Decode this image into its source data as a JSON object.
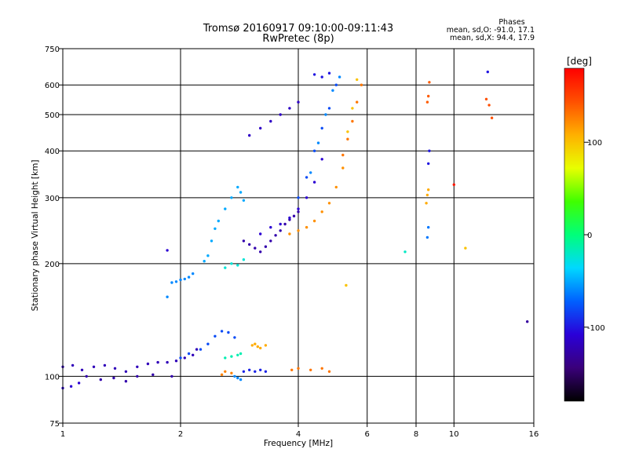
{
  "chart_data": {
    "type": "scatter",
    "title": "Tromsø 20160917 09:10:00-09:11:43",
    "subtitle": "RwPretec (8p)",
    "xlabel": "Frequency [MHz]",
    "ylabel": "Stationary phase Virtual Height [km]",
    "x_scale": "log",
    "y_scale": "log",
    "xlim": [
      1,
      16
    ],
    "ylim": [
      75,
      750
    ],
    "x_ticks": [
      1,
      2,
      4,
      6,
      8,
      10,
      16
    ],
    "y_ticks": [
      75,
      100,
      200,
      300,
      400,
      500,
      600,
      750
    ],
    "grid": true,
    "stats": {
      "heading": "Phases",
      "o_line": "mean, sd,O: -91.0, 17.1",
      "x_line": "mean, sd,X:  94.4, 17.9"
    },
    "colorbar": {
      "label": "[deg]",
      "range": [
        -180,
        180
      ],
      "ticks": [
        100,
        0,
        -100
      ],
      "palette": [
        "#000000",
        "#3a007a",
        "#2a00d8",
        "#0060ff",
        "#00d8ff",
        "#00ff7a",
        "#40ff00",
        "#e8ff00",
        "#ffb000",
        "#ff5000",
        "#ff0000"
      ]
    },
    "series": [
      {
        "x": [
          1.0,
          1.06,
          1.12,
          1.2,
          1.28,
          1.36,
          1.45,
          1.55,
          1.65,
          1.75,
          1.85,
          1.95,
          2.05,
          2.15,
          2.2
        ],
        "y": [
          106,
          107,
          104,
          106,
          107,
          105,
          103,
          106,
          108,
          109,
          109,
          110,
          112,
          114,
          118
        ],
        "phase": -120
      },
      {
        "x": [
          1.0,
          1.05,
          1.1
        ],
        "y": [
          93,
          94,
          96
        ],
        "phase": -110
      },
      {
        "x": [
          1.15,
          1.25,
          1.35,
          1.45,
          1.55,
          1.7,
          1.9
        ],
        "y": [
          100,
          98,
          99,
          97,
          100,
          101,
          100
        ],
        "phase": -125
      },
      {
        "x": [
          2.0,
          2.1,
          2.25,
          2.35,
          2.45,
          2.55,
          2.65,
          2.75
        ],
        "y": [
          112,
          115,
          118,
          122,
          128,
          132,
          131,
          127
        ],
        "phase": -80
      },
      {
        "x": [
          2.6,
          2.7,
          2.8,
          2.85
        ],
        "y": [
          112,
          113,
          114,
          115
        ],
        "phase": -15
      },
      {
        "x": [
          2.75,
          2.8,
          2.85
        ],
        "y": [
          100,
          99,
          98
        ],
        "phase": -60
      },
      {
        "x": [
          3.05,
          3.1,
          3.15,
          3.2,
          3.3
        ],
        "y": [
          121,
          122,
          120,
          119,
          121
        ],
        "phase": 110
      },
      {
        "x": [
          2.55,
          2.6,
          2.7
        ],
        "y": [
          101,
          103,
          102
        ],
        "phase": 125
      },
      {
        "x": [
          2.9,
          3.0,
          3.1,
          3.2,
          3.3
        ],
        "y": [
          103,
          104,
          103,
          104,
          103
        ],
        "phase": -95
      },
      {
        "x": [
          3.85,
          4.0,
          4.3,
          4.6,
          4.8
        ],
        "y": [
          104,
          105,
          104,
          105,
          103
        ],
        "phase": 130
      },
      {
        "x": [
          1.85,
          1.9,
          1.95,
          2.0,
          2.05,
          2.1,
          2.15
        ],
        "y": [
          163,
          178,
          179,
          181,
          182,
          184,
          188
        ],
        "phase": -60
      },
      {
        "x": [
          1.85
        ],
        "y": [
          217
        ],
        "phase": -110
      },
      {
        "x": [
          2.3,
          2.35,
          2.4,
          2.45,
          2.5,
          2.6,
          2.7,
          2.8,
          2.85,
          2.9
        ],
        "y": [
          203,
          210,
          230,
          248,
          260,
          280,
          300,
          320,
          310,
          295
        ],
        "phase": -50
      },
      {
        "x": [
          2.6,
          2.7,
          2.8,
          2.9
        ],
        "y": [
          195,
          200,
          198,
          205
        ],
        "phase": -25
      },
      {
        "x": [
          2.9,
          3.0,
          3.1,
          3.2,
          3.3,
          3.4,
          3.5,
          3.6,
          3.7,
          3.8,
          3.9,
          4.0
        ],
        "y": [
          230,
          225,
          220,
          215,
          222,
          230,
          238,
          245,
          255,
          262,
          268,
          275
        ],
        "phase": -125
      },
      {
        "x": [
          3.2,
          3.4,
          3.6,
          3.8,
          4.0,
          4.2,
          4.4,
          4.6
        ],
        "y": [
          240,
          250,
          255,
          265,
          280,
          300,
          330,
          380
        ],
        "phase": -110
      },
      {
        "x": [
          3.0,
          3.2,
          3.4,
          3.6,
          3.8,
          4.0
        ],
        "y": [
          440,
          460,
          480,
          500,
          520,
          540
        ],
        "phase": -115
      },
      {
        "x": [
          4.0,
          4.2,
          4.4,
          4.6,
          4.8,
          5.0
        ],
        "y": [
          300,
          340,
          400,
          460,
          520,
          600
        ],
        "phase": -80
      },
      {
        "x": [
          4.3,
          4.5,
          4.7,
          4.9,
          5.1
        ],
        "y": [
          350,
          420,
          500,
          580,
          630
        ],
        "phase": -60
      },
      {
        "x": [
          4.4,
          4.6,
          4.8
        ],
        "y": [
          640,
          630,
          645
        ],
        "phase": -100
      },
      {
        "x": [
          3.8,
          4.0,
          4.2,
          4.4,
          4.6,
          4.8,
          5.0,
          5.2
        ],
        "y": [
          240,
          245,
          250,
          260,
          275,
          290,
          320,
          360
        ],
        "phase": 120
      },
      {
        "x": [
          5.2,
          5.35,
          5.5,
          5.65,
          5.8
        ],
        "y": [
          390,
          430,
          480,
          540,
          600
        ],
        "phase": 130
      },
      {
        "x": [
          5.35,
          5.5,
          5.65
        ],
        "y": [
          450,
          520,
          620
        ],
        "phase": 100
      },
      {
        "x": [
          5.3
        ],
        "y": [
          175
        ],
        "phase": 100
      },
      {
        "x": [
          7.5
        ],
        "y": [
          215
        ],
        "phase": -20
      },
      {
        "x": [
          8.55,
          8.6,
          8.65
        ],
        "y": [
          540,
          560,
          610
        ],
        "phase": 140
      },
      {
        "x": [
          8.6,
          8.65
        ],
        "y": [
          370,
          400
        ],
        "phase": -100
      },
      {
        "x": [
          8.5,
          8.55,
          8.6
        ],
        "y": [
          290,
          305,
          315
        ],
        "phase": 110
      },
      {
        "x": [
          8.55,
          8.6
        ],
        "y": [
          235,
          250
        ],
        "phase": -65
      },
      {
        "x": [
          10.0
        ],
        "y": [
          325
        ],
        "phase": 170
      },
      {
        "x": [
          10.7
        ],
        "y": [
          220
        ],
        "phase": 100
      },
      {
        "x": [
          12.1,
          12.3,
          12.5
        ],
        "y": [
          550,
          530,
          490
        ],
        "phase": 145
      },
      {
        "x": [
          12.2
        ],
        "y": [
          650
        ],
        "phase": -100
      },
      {
        "x": [
          15.4
        ],
        "y": [
          140
        ],
        "phase": -130
      }
    ]
  }
}
